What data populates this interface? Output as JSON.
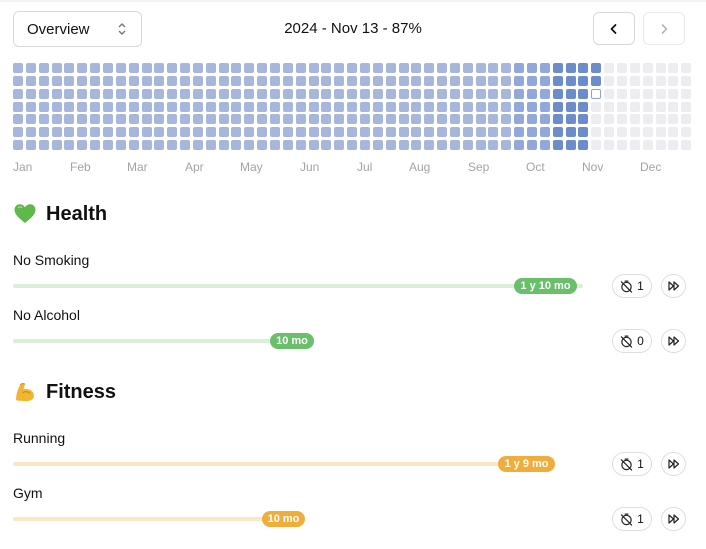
{
  "header": {
    "view_select_value": "Overview",
    "title": "2024 - Nov 13 - 87%"
  },
  "heatmap": {
    "months": [
      "Jan",
      "Feb",
      "Mar",
      "Apr",
      "May",
      "Jun",
      "Jul",
      "Aug",
      "Sep",
      "Oct",
      "Nov",
      "Dec"
    ],
    "colors": {
      "light": "#a6b6dc",
      "medium": "#92a8db",
      "dark": "#6d8ccb",
      "empty": "#ededf1",
      "today_border": "#8ea2cc"
    }
  },
  "sections": [
    {
      "title": "Health",
      "icon": "green-heart-icon",
      "color": "#6abf6a",
      "track_color": "#d8efd8",
      "habits": [
        {
          "name": "No Smoking",
          "duration": "1 y 10 mo",
          "progress": 0.84,
          "resets": "1"
        },
        {
          "name": "No Alcohol",
          "duration": "10 mo",
          "progress": 0.45,
          "resets": "0"
        }
      ]
    },
    {
      "title": "Fitness",
      "icon": "flexed-biceps-icon",
      "color": "#f0ad3b",
      "track_color": "#fbe6c7",
      "habits": [
        {
          "name": "Running",
          "duration": "1 y 9 mo",
          "progress": 0.82,
          "resets": "1"
        },
        {
          "name": "Gym",
          "duration": "10 mo",
          "progress": 0.44,
          "resets": "1"
        }
      ]
    }
  ]
}
